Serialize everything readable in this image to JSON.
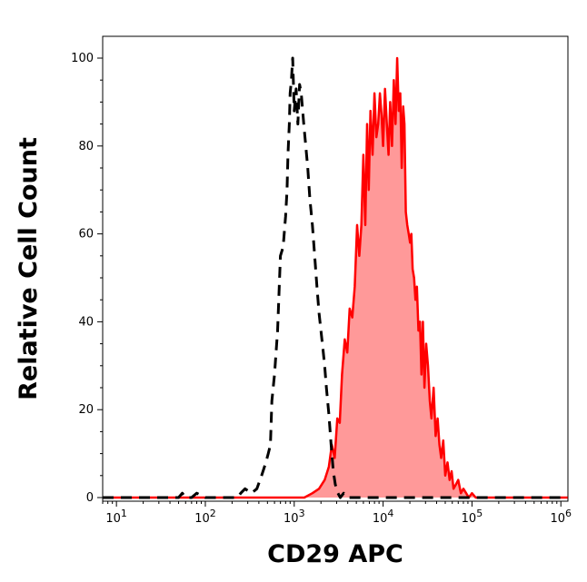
{
  "chart_data": {
    "type": "area",
    "title": "",
    "xlabel": "CD29 APC",
    "ylabel": "Relative Cell Count",
    "x_scale": "log",
    "xlim": [
      7,
      1200000
    ],
    "ylim": [
      0,
      100
    ],
    "grid": false,
    "legend": "none",
    "x_ticks": [
      {
        "value": 10,
        "base": "10",
        "exp": "1"
      },
      {
        "value": 100,
        "base": "10",
        "exp": "2"
      },
      {
        "value": 1000,
        "base": "10",
        "exp": "3"
      },
      {
        "value": 10000,
        "base": "10",
        "exp": "4"
      },
      {
        "value": 100000,
        "base": "10",
        "exp": "5"
      },
      {
        "value": 1000000,
        "base": "10",
        "exp": "6"
      }
    ],
    "y_ticks": [
      0,
      20,
      40,
      60,
      80,
      100
    ],
    "series": [
      {
        "style": "dashed",
        "color": "#000000",
        "fill": "none",
        "x": [
          7,
          50,
          55,
          60,
          70,
          80,
          100,
          130,
          170,
          230,
          250,
          280,
          330,
          380,
          430,
          480,
          510,
          540,
          560,
          600,
          650,
          700,
          750,
          800,
          830,
          850,
          880,
          900,
          930,
          960,
          1000,
          1050,
          1100,
          1150,
          1200,
          1280,
          1350,
          1420,
          1500,
          1600,
          1700,
          1800,
          1900,
          2000,
          2100,
          2200,
          2300,
          2450,
          2600,
          2750,
          2900,
          3100,
          3300,
          3600,
          4000,
          10000,
          1200000
        ],
        "y": [
          0,
          0,
          1,
          0,
          0,
          1,
          0,
          0,
          0,
          0,
          1,
          2,
          1,
          2,
          5,
          8,
          10,
          12,
          22,
          28,
          38,
          55,
          57,
          64,
          70,
          78,
          85,
          92,
          95,
          100,
          88,
          93,
          85,
          94,
          92,
          85,
          80,
          75,
          68,
          62,
          55,
          48,
          42,
          38,
          34,
          30,
          25,
          19,
          12,
          6,
          3,
          1,
          0,
          1,
          0,
          0,
          0
        ]
      },
      {
        "style": "solid",
        "color": "#ff0000",
        "fill": "#ff9999",
        "x": [
          7,
          500,
          700,
          1000,
          1300,
          1600,
          1900,
          2200,
          2450,
          2650,
          2850,
          3050,
          3250,
          3450,
          3700,
          3950,
          4200,
          4500,
          4800,
          5100,
          5400,
          5700,
          6000,
          6300,
          6600,
          6900,
          7200,
          7600,
          8000,
          8400,
          8800,
          9200,
          9600,
          10000,
          10500,
          11000,
          11500,
          12000,
          12600,
          13200,
          13800,
          14400,
          15000,
          15600,
          16200,
          16800,
          17400,
          18000,
          18700,
          19400,
          20100,
          20800,
          21500,
          22300,
          23100,
          24000,
          25000,
          26000,
          27000,
          28000,
          29200,
          30500,
          32000,
          33500,
          35000,
          37000,
          39000,
          41000,
          43000,
          45000,
          47500,
          50000,
          53000,
          56000,
          59000,
          62000,
          66000,
          70000,
          75000,
          80000,
          86000,
          92000,
          100000,
          110000,
          120000,
          140000,
          200000,
          400000,
          700000,
          1000000,
          1200000
        ],
        "y": [
          0,
          0,
          0,
          0,
          0,
          1,
          2,
          4,
          7,
          12,
          9,
          18,
          17,
          28,
          36,
          33,
          43,
          41,
          48,
          62,
          55,
          62,
          78,
          62,
          85,
          70,
          88,
          78,
          92,
          82,
          85,
          92,
          87,
          80,
          93,
          85,
          78,
          90,
          80,
          95,
          85,
          100,
          88,
          92,
          75,
          89,
          85,
          65,
          62,
          60,
          58,
          60,
          52,
          50,
          45,
          48,
          38,
          40,
          28,
          40,
          25,
          35,
          30,
          22,
          18,
          25,
          14,
          18,
          12,
          9,
          13,
          5,
          8,
          4,
          6,
          2,
          3,
          4,
          1,
          2,
          1,
          0,
          1,
          0,
          0,
          0,
          0,
          0,
          0,
          0,
          0
        ]
      }
    ]
  }
}
